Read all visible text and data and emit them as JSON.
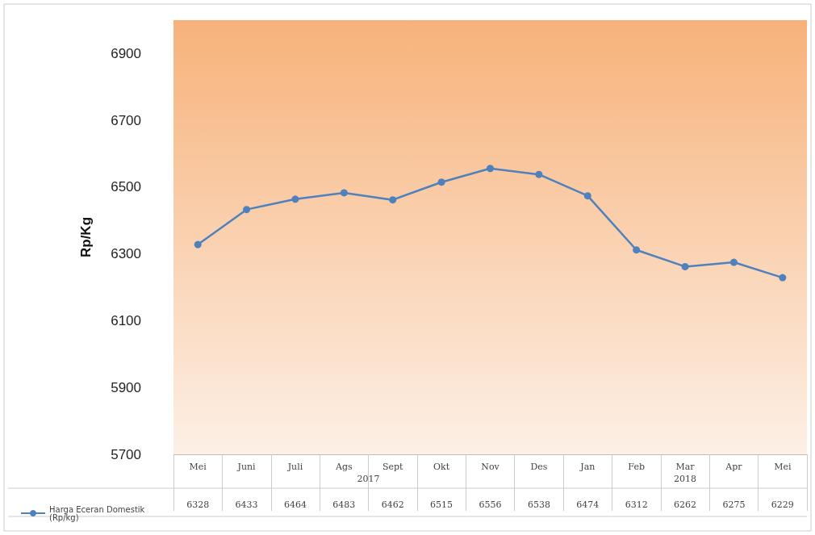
{
  "chart_data": {
    "type": "line",
    "ylabel": "Rp/Kg",
    "categories": [
      "Mei",
      "Juni",
      "Juli",
      "Ags",
      "Sept",
      "Okt",
      "Nov",
      "Des",
      "Jan",
      "Feb",
      "Mar",
      "Apr",
      "Mei"
    ],
    "series": [
      {
        "name": "Harga Eceran Domestik (Rp/kg)",
        "color": "#4f81bd",
        "values": [
          6328,
          6433,
          6464,
          6483,
          6462,
          6515,
          6556,
          6538,
          6474,
          6312,
          6262,
          6275,
          6229
        ]
      }
    ],
    "ylim": [
      5700,
      7000
    ],
    "yticks": [
      5700,
      5900,
      6100,
      6300,
      6500,
      6700,
      6900
    ],
    "annotations": [
      "2017",
      "2018"
    ],
    "data_labels": true,
    "grid": false,
    "legend": "bottom left",
    "marker": "circle",
    "line_style": "solid"
  }
}
